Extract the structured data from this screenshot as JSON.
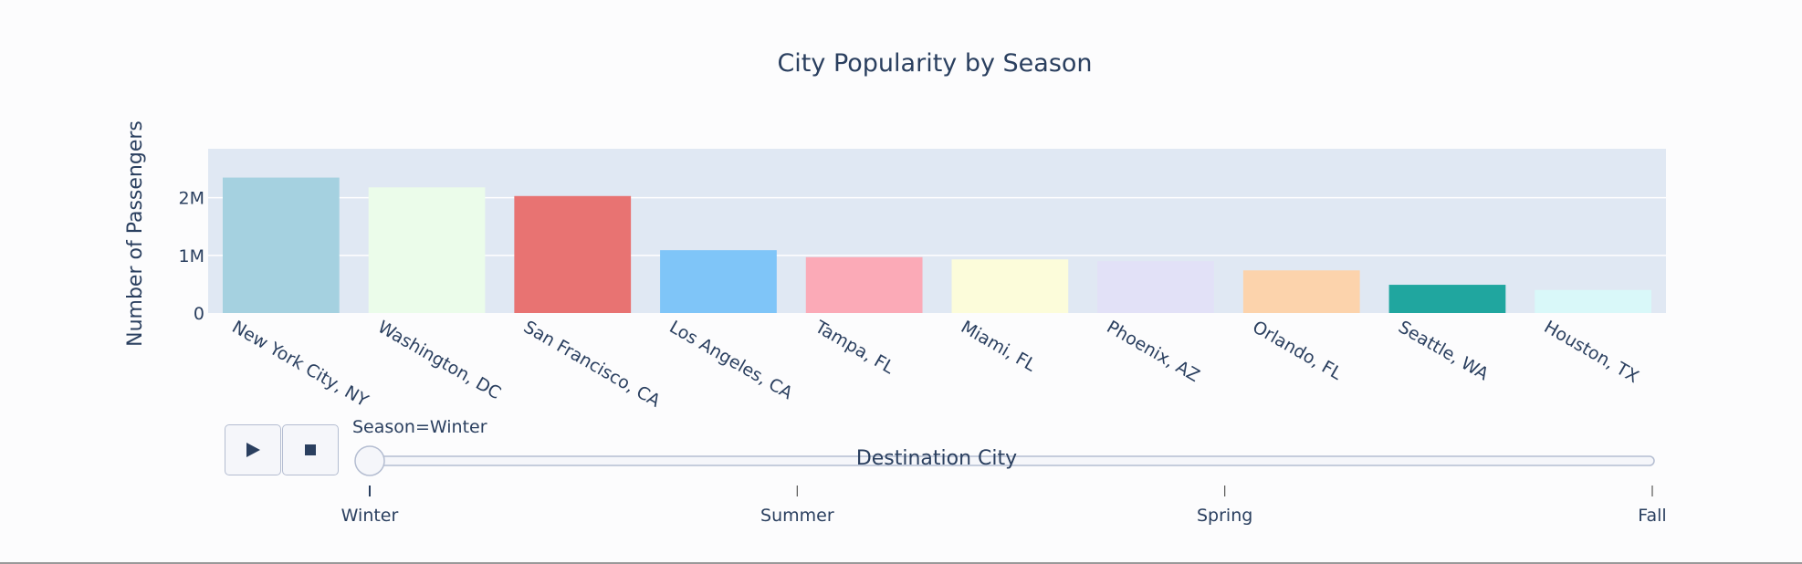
{
  "chart_data": {
    "type": "bar",
    "title": "City Popularity by Season",
    "xlabel": "Destination City",
    "ylabel": "Number of Passengers",
    "ylim": [
      0,
      2850000
    ],
    "yticks": [
      0,
      1000000,
      2000000
    ],
    "ytick_labels": [
      "0",
      "1M",
      "2M"
    ],
    "grid": true,
    "categories": [
      "New York City, NY",
      "Washington, DC",
      "San Francisco, CA",
      "Los Angeles, CA",
      "Tampa, FL",
      "Miami, FL",
      "Phoenix, AZ",
      "Orlando, FL",
      "Seattle, WA",
      "Houston, TX"
    ],
    "values": [
      2350000,
      2180000,
      2030000,
      1090000,
      970000,
      930000,
      900000,
      740000,
      490000,
      400000
    ],
    "colors": [
      "#a5d1e0",
      "#ebfcea",
      "#e87372",
      "#7fc5f8",
      "#fbaab7",
      "#fcfcda",
      "#e2e1f7",
      "#fcd3ac",
      "#20a69f",
      "#d9f8f9"
    ]
  },
  "animation": {
    "current_label": "Season=Winter",
    "steps": [
      "Winter",
      "Summer",
      "Spring",
      "Fall"
    ],
    "current_index": 0,
    "play_icon": "play-icon",
    "stop_icon": "stop-icon"
  },
  "colors": {
    "plot_bg": "#e0e8f3",
    "paper_bg": "#fcfcfd",
    "text": "#2a3f5f",
    "slider_border": "#b4bdd1"
  }
}
